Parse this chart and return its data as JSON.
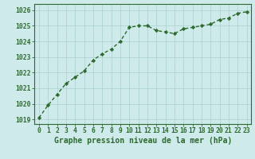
{
  "x_values": [
    0,
    1,
    2,
    3,
    4,
    5,
    6,
    7,
    8,
    9,
    10,
    11,
    12,
    13,
    14,
    15,
    16,
    17,
    18,
    19,
    20,
    21,
    22,
    23
  ],
  "y_values": [
    1019.1,
    1019.9,
    1020.6,
    1021.3,
    1021.7,
    1022.1,
    1022.8,
    1023.2,
    1023.5,
    1024.0,
    1024.9,
    1025.0,
    1025.0,
    1024.7,
    1024.6,
    1024.5,
    1024.8,
    1024.9,
    1025.0,
    1025.1,
    1025.4,
    1025.5,
    1025.8,
    1025.9
  ],
  "line_color": "#2d6a2d",
  "marker_style": "D",
  "marker_size": 2.2,
  "bg_color": "#ceeaea",
  "grid_color": "#afd4d4",
  "xlabel": "Graphe pression niveau de la mer (hPa)",
  "xlabel_fontsize": 7,
  "ylabel_ticks": [
    1019,
    1020,
    1021,
    1022,
    1023,
    1024,
    1025,
    1026
  ],
  "ylim": [
    1018.7,
    1026.4
  ],
  "xlim": [
    -0.5,
    23.5
  ],
  "tick_label_color": "#2d6a2d",
  "tick_fontsize": 5.8,
  "line_width": 1.0
}
